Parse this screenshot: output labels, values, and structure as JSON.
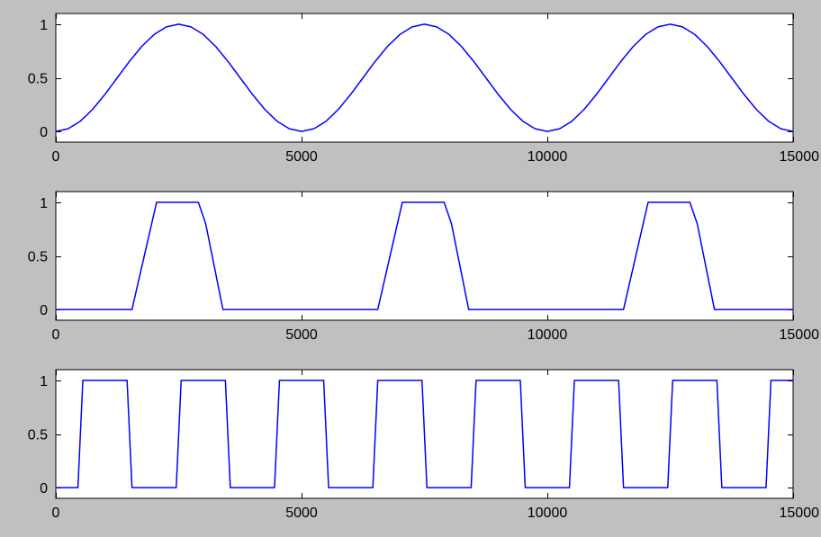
{
  "figure": {
    "background": "#c0c0c0",
    "axes_background": "#ffffff",
    "line_color": "#0000ff"
  },
  "chart_data": [
    {
      "type": "line",
      "title": "",
      "xlabel": "",
      "ylabel": "",
      "xlim": [
        0,
        15000
      ],
      "ylim": [
        -0.1,
        1.1
      ],
      "xticks": [
        0,
        5000,
        10000,
        15000
      ],
      "xtick_labels": [
        "0",
        "5000",
        "10000",
        "15000"
      ],
      "yticks": [
        0,
        0.5,
        1
      ],
      "ytick_labels": [
        "0",
        "0.5",
        "1"
      ],
      "grid": false,
      "legend": "none",
      "series": [
        {
          "color": "#0000ff",
          "x": [
            0,
            250,
            500,
            750,
            1000,
            1250,
            1500,
            1750,
            2000,
            2250,
            2500,
            2750,
            3000,
            3250,
            3500,
            3750,
            4000,
            4250,
            4500,
            4750,
            5000,
            5250,
            5500,
            5750,
            6000,
            6250,
            6500,
            6750,
            7000,
            7250,
            7500,
            7750,
            8000,
            8250,
            8500,
            8750,
            9000,
            9250,
            9500,
            9750,
            10000,
            10250,
            10500,
            10750,
            11000,
            11250,
            11500,
            11750,
            12000,
            12250,
            12500,
            12750,
            13000,
            13250,
            13500,
            13750,
            14000,
            14250,
            14500,
            14750,
            15000
          ],
          "y": [
            0,
            0.0245,
            0.0955,
            0.2061,
            0.3455,
            0.5,
            0.6545,
            0.7939,
            0.9045,
            0.9755,
            1,
            0.9755,
            0.9045,
            0.7939,
            0.6545,
            0.5,
            0.3455,
            0.2061,
            0.0955,
            0.0245,
            0,
            0.0245,
            0.0955,
            0.2061,
            0.3455,
            0.5,
            0.6545,
            0.7939,
            0.9045,
            0.9755,
            1,
            0.9755,
            0.9045,
            0.7939,
            0.6545,
            0.5,
            0.3455,
            0.2061,
            0.0955,
            0.0245,
            0,
            0.0245,
            0.0955,
            0.2061,
            0.3455,
            0.5,
            0.6545,
            0.7939,
            0.9045,
            0.9755,
            1,
            0.9755,
            0.9045,
            0.7939,
            0.6545,
            0.5,
            0.3455,
            0.2061,
            0.0955,
            0.0245,
            0
          ]
        }
      ]
    },
    {
      "type": "line",
      "title": "",
      "xlabel": "",
      "ylabel": "",
      "xlim": [
        0,
        15000
      ],
      "ylim": [
        -0.1,
        1.1
      ],
      "xticks": [
        0,
        5000,
        10000,
        15000
      ],
      "xtick_labels": [
        "0",
        "5000",
        "10000",
        "15000"
      ],
      "yticks": [
        0,
        0.5,
        1
      ],
      "ytick_labels": [
        "0",
        "0.5",
        "1"
      ],
      "grid": false,
      "legend": "none",
      "series": [
        {
          "color": "#0000ff",
          "x": [
            0,
            1550,
            1850,
            2050,
            2900,
            3050,
            3400,
            6550,
            6850,
            7050,
            7900,
            8050,
            8400,
            11550,
            11850,
            12050,
            12900,
            13050,
            13400,
            15000
          ],
          "y": [
            0,
            0,
            0.6,
            1,
            1,
            0.8,
            0,
            0,
            0.6,
            1,
            1,
            0.8,
            0,
            0,
            0.6,
            1,
            1,
            0.8,
            0,
            0
          ]
        }
      ]
    },
    {
      "type": "line",
      "title": "",
      "xlabel": "",
      "ylabel": "",
      "xlim": [
        0,
        15000
      ],
      "ylim": [
        -0.1,
        1.1
      ],
      "xticks": [
        0,
        5000,
        10000,
        15000
      ],
      "xtick_labels": [
        "0",
        "5000",
        "10000",
        "15000"
      ],
      "yticks": [
        0,
        0.5,
        1
      ],
      "ytick_labels": [
        "0",
        "0.5",
        "1"
      ],
      "grid": false,
      "legend": "none",
      "series": [
        {
          "color": "#0000ff",
          "x": [
            0,
            450,
            550,
            1450,
            1550,
            2450,
            2550,
            3450,
            3550,
            4450,
            4550,
            5450,
            5550,
            6450,
            6550,
            7450,
            7550,
            8450,
            8550,
            9450,
            9550,
            10450,
            10550,
            11450,
            11550,
            12450,
            12550,
            13450,
            13550,
            14450,
            14550,
            15000
          ],
          "y": [
            0,
            0,
            1,
            1,
            0,
            0,
            1,
            1,
            0,
            0,
            1,
            1,
            0,
            0,
            1,
            1,
            0,
            0,
            1,
            1,
            0,
            0,
            1,
            1,
            0,
            0,
            1,
            1,
            0,
            0,
            1,
            1
          ]
        }
      ]
    }
  ]
}
